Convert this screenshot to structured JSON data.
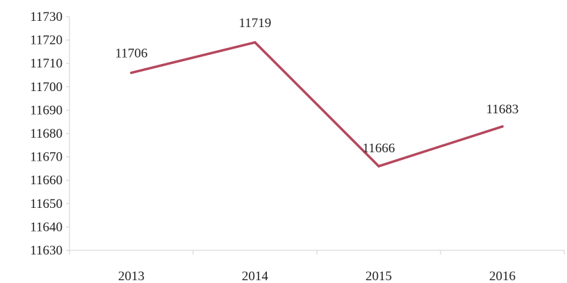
{
  "chart_data": {
    "type": "line",
    "categories": [
      "2013",
      "2014",
      "2015",
      "2016"
    ],
    "series": [
      {
        "values": [
          11706,
          11719,
          11666,
          11683
        ],
        "color": "#b5475d"
      }
    ],
    "data_labels": [
      "11706",
      "11719",
      "11666",
      "11683"
    ],
    "y_ticks": [
      11630,
      11640,
      11650,
      11660,
      11670,
      11680,
      11690,
      11700,
      11710,
      11720,
      11730
    ],
    "ylim": [
      11630,
      11730
    ],
    "title": "",
    "xlabel": "",
    "ylabel": "",
    "grid": false,
    "legend": "none"
  }
}
